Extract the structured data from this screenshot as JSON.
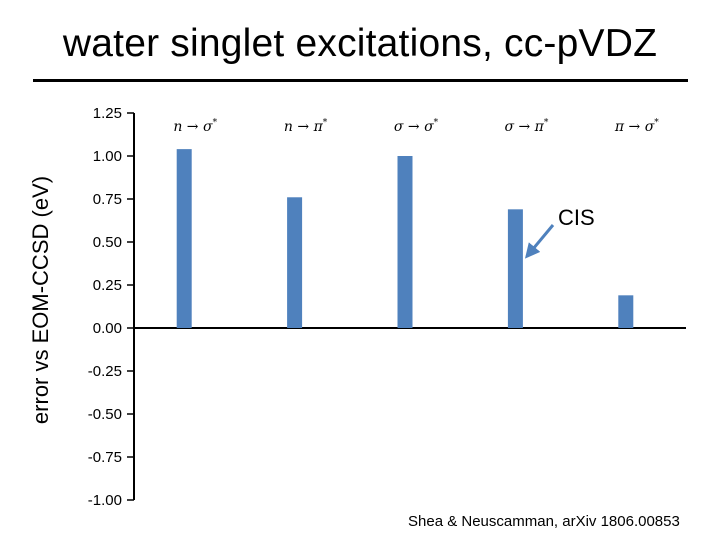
{
  "slide": {
    "title": "water singlet excitations, cc-pVDZ",
    "citation": "Shea & Neuscamman, arXiv 1806.00853"
  },
  "chart_data": {
    "type": "bar",
    "title": "water singlet excitations, cc-pVDZ",
    "xlabel": "",
    "ylabel": "error vs EOM-CCSD (eV)",
    "ylim": [
      -1.0,
      1.25
    ],
    "yticks": [
      1.25,
      1.0,
      0.75,
      0.5,
      0.25,
      0.0,
      -0.25,
      -0.5,
      -0.75,
      -1.0
    ],
    "ytick_labels": [
      "1.25",
      "1.00",
      "0.75",
      "0.50",
      "0.25",
      "0.00",
      "-0.25",
      "-0.50",
      "-0.75",
      "-1.00"
    ],
    "grid": false,
    "series": [
      {
        "name": "CIS",
        "color": "#4f81bd",
        "values": [
          1.04,
          0.76,
          1.0,
          0.69,
          0.19
        ]
      }
    ],
    "categories": [
      {
        "from": "n",
        "to": "σ",
        "star": "*"
      },
      {
        "from": "n",
        "to": "π",
        "star": "*"
      },
      {
        "from": "σ",
        "to": "σ",
        "star": "*"
      },
      {
        "from": "σ",
        "to": "π",
        "star": "*"
      },
      {
        "from": "π",
        "to": "σ",
        "star": "*"
      }
    ],
    "arrow_symbol": "→",
    "annotation": {
      "text": "CIS",
      "target_category_index": 3,
      "arrow_color": "#4f81bd"
    }
  }
}
